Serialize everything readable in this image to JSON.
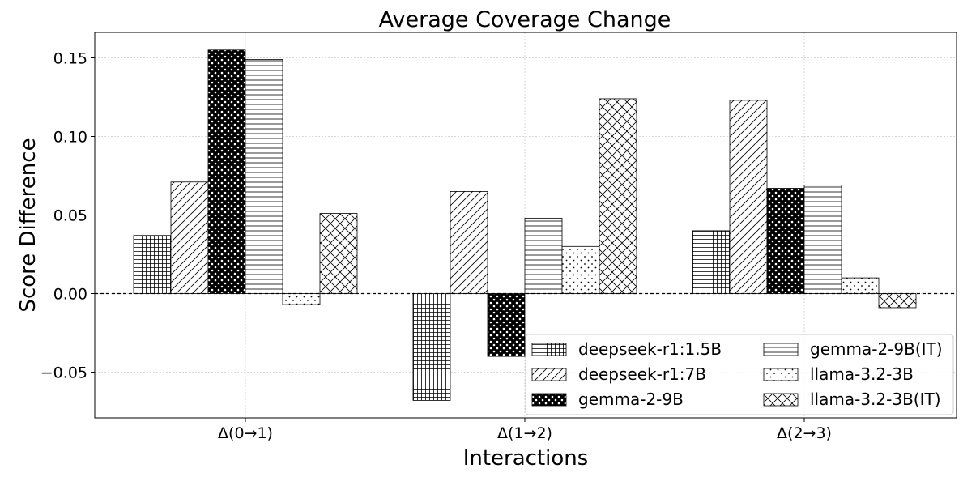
{
  "chart_data": {
    "type": "bar",
    "title": "Average Coverage Change",
    "xlabel": "Interactions",
    "ylabel": "Score Difference",
    "categories": [
      "Δ(0→1)",
      "Δ(1→2)",
      "Δ(2→3)"
    ],
    "ylim": [
      -0.08,
      0.166
    ],
    "yticks": [
      -0.05,
      0.0,
      0.05,
      0.1,
      0.15
    ],
    "ytick_labels": [
      "−0.05",
      "0.00",
      "0.05",
      "0.10",
      "0.15"
    ],
    "grid": true,
    "zero_line": "dashed",
    "legend": {
      "placement": "bottom-right",
      "columns": 2
    },
    "series": [
      {
        "name": "deepseek-r1:1.5B",
        "hatch": "grid",
        "values": [
          0.037,
          -0.068,
          0.04
        ]
      },
      {
        "name": "deepseek-r1:7B",
        "hatch": "diagonal",
        "values": [
          0.071,
          0.065,
          0.123
        ]
      },
      {
        "name": "gemma-2-9B",
        "hatch": "stars",
        "values": [
          0.155,
          -0.04,
          0.067
        ]
      },
      {
        "name": "gemma-2-9B(IT)",
        "hatch": "horizontal",
        "values": [
          0.149,
          0.048,
          0.069
        ]
      },
      {
        "name": "llama-3.2-3B",
        "hatch": "dots",
        "values": [
          -0.007,
          0.03,
          0.01
        ]
      },
      {
        "name": "llama-3.2-3B(IT)",
        "hatch": "crosshatch",
        "values": [
          0.051,
          0.124,
          -0.009
        ]
      }
    ]
  }
}
